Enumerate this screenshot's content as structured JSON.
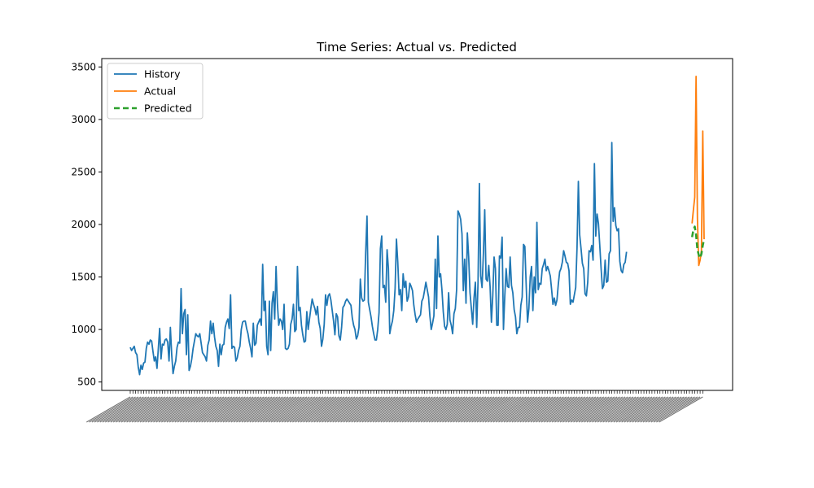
{
  "chart_data": {
    "type": "line",
    "title": "Time Series: Actual vs. Predicted",
    "xlabel": "",
    "ylabel": "",
    "ylim": [
      420,
      3580
    ],
    "yticks": [
      500,
      1000,
      1500,
      2000,
      2500,
      3000,
      3500
    ],
    "legend_position": "top-left",
    "grid": false,
    "x_tick_labels_note": "dense rotated date labels, unreadable",
    "series": [
      {
        "name": "History",
        "color": "#1f77b4",
        "style": "solid",
        "start_index": 0,
        "values": [
          830,
          800,
          820,
          840,
          780,
          760,
          640,
          570,
          660,
          620,
          680,
          690,
          820,
          880,
          860,
          900,
          890,
          790,
          700,
          740,
          630,
          820,
          1010,
          720,
          860,
          850,
          900,
          910,
          880,
          700,
          1020,
          760,
          580,
          650,
          700,
          830,
          880,
          870,
          1390,
          960,
          1150,
          1190,
          760,
          1140,
          610,
          650,
          720,
          820,
          890,
          960,
          940,
          930,
          960,
          870,
          780,
          760,
          740,
          700,
          850,
          900,
          1080,
          960,
          1060,
          930,
          840,
          800,
          650,
          860,
          760,
          850,
          860,
          1020,
          1070,
          1100,
          1010,
          1330,
          820,
          840,
          830,
          700,
          730,
          800,
          840,
          1000,
          1070,
          1080,
          1080,
          1010,
          960,
          880,
          820,
          740,
          1060,
          850,
          870,
          1040,
          1070,
          1100,
          1040,
          1620,
          1180,
          1270,
          840,
          760,
          1270,
          800,
          1250,
          1360,
          1100,
          1600,
          1250,
          1040,
          1100,
          1080,
          1000,
          1240,
          820,
          810,
          820,
          860,
          1050,
          1100,
          1240,
          980,
          1000,
          1600,
          1180,
          1210,
          1040,
          950,
          880,
          890,
          1170,
          1000,
          1100,
          1200,
          1290,
          1240,
          1200,
          1140,
          1220,
          1070,
          1010,
          840,
          910,
          1050,
          1330,
          1230,
          1320,
          1340,
          1280,
          1180,
          1080,
          950,
          1150,
          1120,
          940,
          900,
          1020,
          1210,
          1230,
          1270,
          1290,
          1270,
          1250,
          1230,
          1110,
          1040,
          1000,
          910,
          940,
          1020,
          1480,
          1300,
          1270,
          1280,
          1730,
          2080,
          1260,
          1190,
          1120,
          1030,
          960,
          900,
          900,
          1000,
          1160,
          1770,
          1890,
          1400,
          1420,
          1260,
          1760,
          1580,
          960,
          1030,
          1080,
          1180,
          1390,
          1860,
          1640,
          1330,
          1380,
          1180,
          1530,
          1400,
          1460,
          1270,
          1310,
          1440,
          1410,
          1370,
          1230,
          1140,
          1070,
          1100,
          1120,
          1140,
          1270,
          1300,
          1370,
          1450,
          1380,
          1310,
          1130,
          1000,
          1060,
          1130,
          1670,
          1200,
          1890,
          1500,
          1530,
          1380,
          1170,
          1030,
          1000,
          1050,
          1350,
          1090,
          1040,
          960,
          1150,
          1200,
          1380,
          2130,
          2100,
          2050,
          1910,
          1370,
          1670,
          1250,
          1920,
          1690,
          1350,
          1200,
          1050,
          1300,
          1450,
          1020,
          1450,
          2390,
          1510,
          1400,
          1720,
          2140,
          1480,
          1460,
          1610,
          1410,
          1070,
          1320,
          1690,
          1580,
          1040,
          1040,
          1700,
          1680,
          1880,
          1000,
          1320,
          1580,
          1410,
          1400,
          1690,
          1420,
          1350,
          1190,
          1120,
          960,
          1020,
          1020,
          1230,
          1310,
          1810,
          1790,
          1420,
          1070,
          1200,
          1500,
          1600,
          1180,
          1500,
          1350,
          2020,
          1380,
          1440,
          1430,
          1580,
          1620,
          1670,
          1560,
          1600,
          1560,
          1510,
          1380,
          1240,
          1300,
          1230,
          1280,
          1430,
          1550,
          1580,
          1640,
          1750,
          1700,
          1640,
          1630,
          1560,
          1240,
          1280,
          1260,
          1330,
          1400,
          1780,
          2410,
          1900,
          1770,
          1630,
          1580,
          1340,
          1320,
          1450,
          1750,
          1740,
          1800,
          1660,
          2580,
          1890,
          2100,
          2010,
          1800,
          1580,
          1390,
          1420,
          1660,
          1450,
          1460,
          1720,
          1750,
          2780,
          2030,
          2160,
          1990,
          1940,
          1960,
          1650,
          1560,
          1540,
          1620,
          1640,
          1740
        ]
      },
      {
        "name": "Actual",
        "color": "#ff7f0e",
        "style": "solid",
        "start_index": 420,
        "values": [
          2010,
          2140,
          2260,
          3410,
          2060,
          1610,
          1660,
          1750,
          2890,
          1860
        ]
      },
      {
        "name": "Predicted",
        "color": "#2ca02c",
        "style": "dashed",
        "start_index": 420,
        "values": [
          1880,
          1950,
          1980,
          1900,
          1760,
          1710,
          1680,
          1720,
          1800,
          1860
        ]
      }
    ],
    "x_count": 430
  }
}
